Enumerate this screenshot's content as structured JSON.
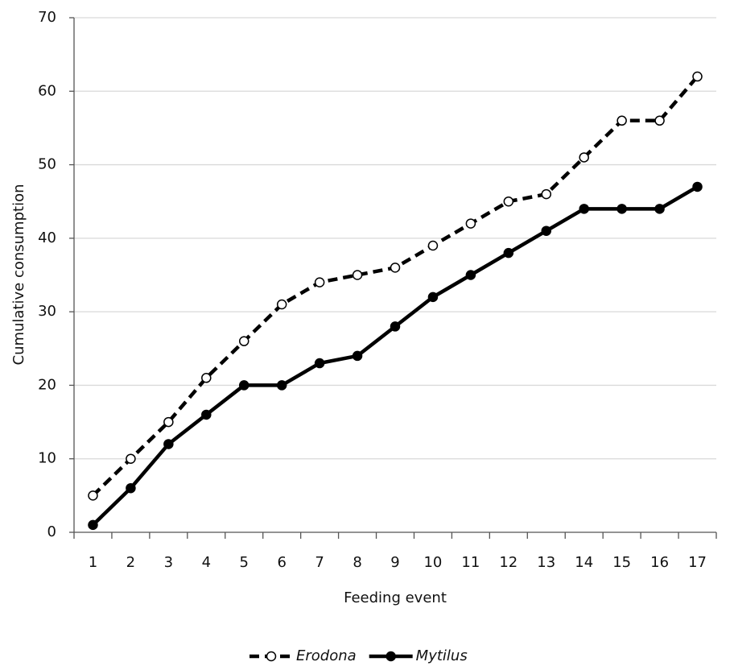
{
  "chart_data": {
    "type": "line",
    "y_label": "Cumulative consumption",
    "x_label": "Feeding event",
    "categories": [
      1,
      2,
      3,
      4,
      5,
      6,
      7,
      8,
      9,
      10,
      11,
      12,
      13,
      14,
      15,
      16,
      17
    ],
    "series": [
      {
        "name": "Erodona",
        "color": "#000000",
        "dashed": true,
        "marker": "open",
        "values": [
          5,
          10,
          15,
          21,
          26,
          31,
          34,
          35,
          36,
          39,
          42,
          45,
          46,
          51,
          56,
          56,
          62
        ]
      },
      {
        "name": "Mytilus",
        "color": "#000000",
        "dashed": false,
        "marker": "filled",
        "values": [
          1,
          6,
          12,
          16,
          20,
          20,
          23,
          24,
          28,
          32,
          35,
          38,
          41,
          44,
          44,
          44,
          47
        ]
      }
    ],
    "ylim": [
      0,
      70
    ],
    "yticks": [
      0,
      10,
      20,
      30,
      40,
      50,
      60,
      70
    ],
    "grid": true,
    "legend": "bottom"
  }
}
